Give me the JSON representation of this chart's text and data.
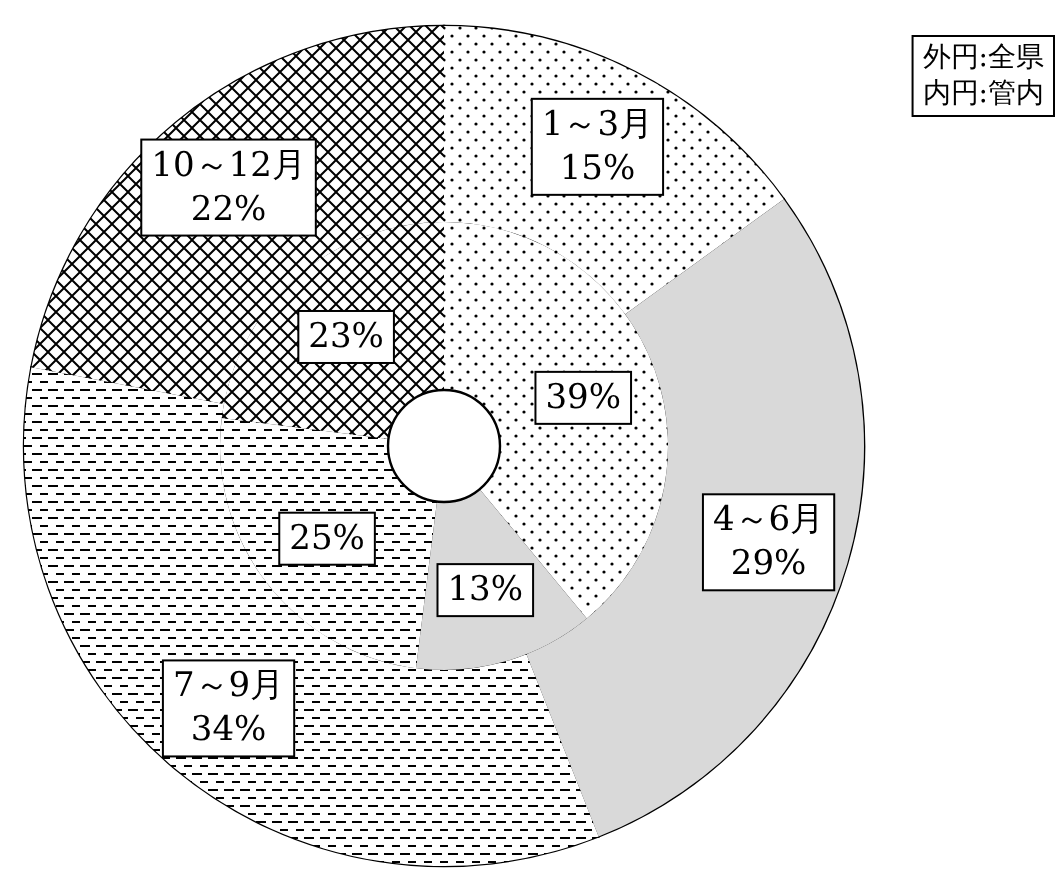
{
  "chart_data": {
    "type": "donut",
    "categories": [
      "1～3月",
      "4～6月",
      "7～9月",
      "10～12月"
    ],
    "colors": [
      "#ffffff",
      "#d9d9d9",
      "#ffffff",
      "#ffffff"
    ],
    "series": [
      {
        "values": [
          15,
          29,
          34,
          22
        ],
        "value_labels": [
          "15%",
          "29%",
          "34%",
          "22%"
        ]
      },
      {
        "values": [
          39,
          13,
          25,
          23
        ],
        "value_labels": [
          "39%",
          "13%",
          "25%",
          "23%"
        ]
      }
    ],
    "annotations": [
      "外円:全県",
      "内円:管内"
    ]
  }
}
